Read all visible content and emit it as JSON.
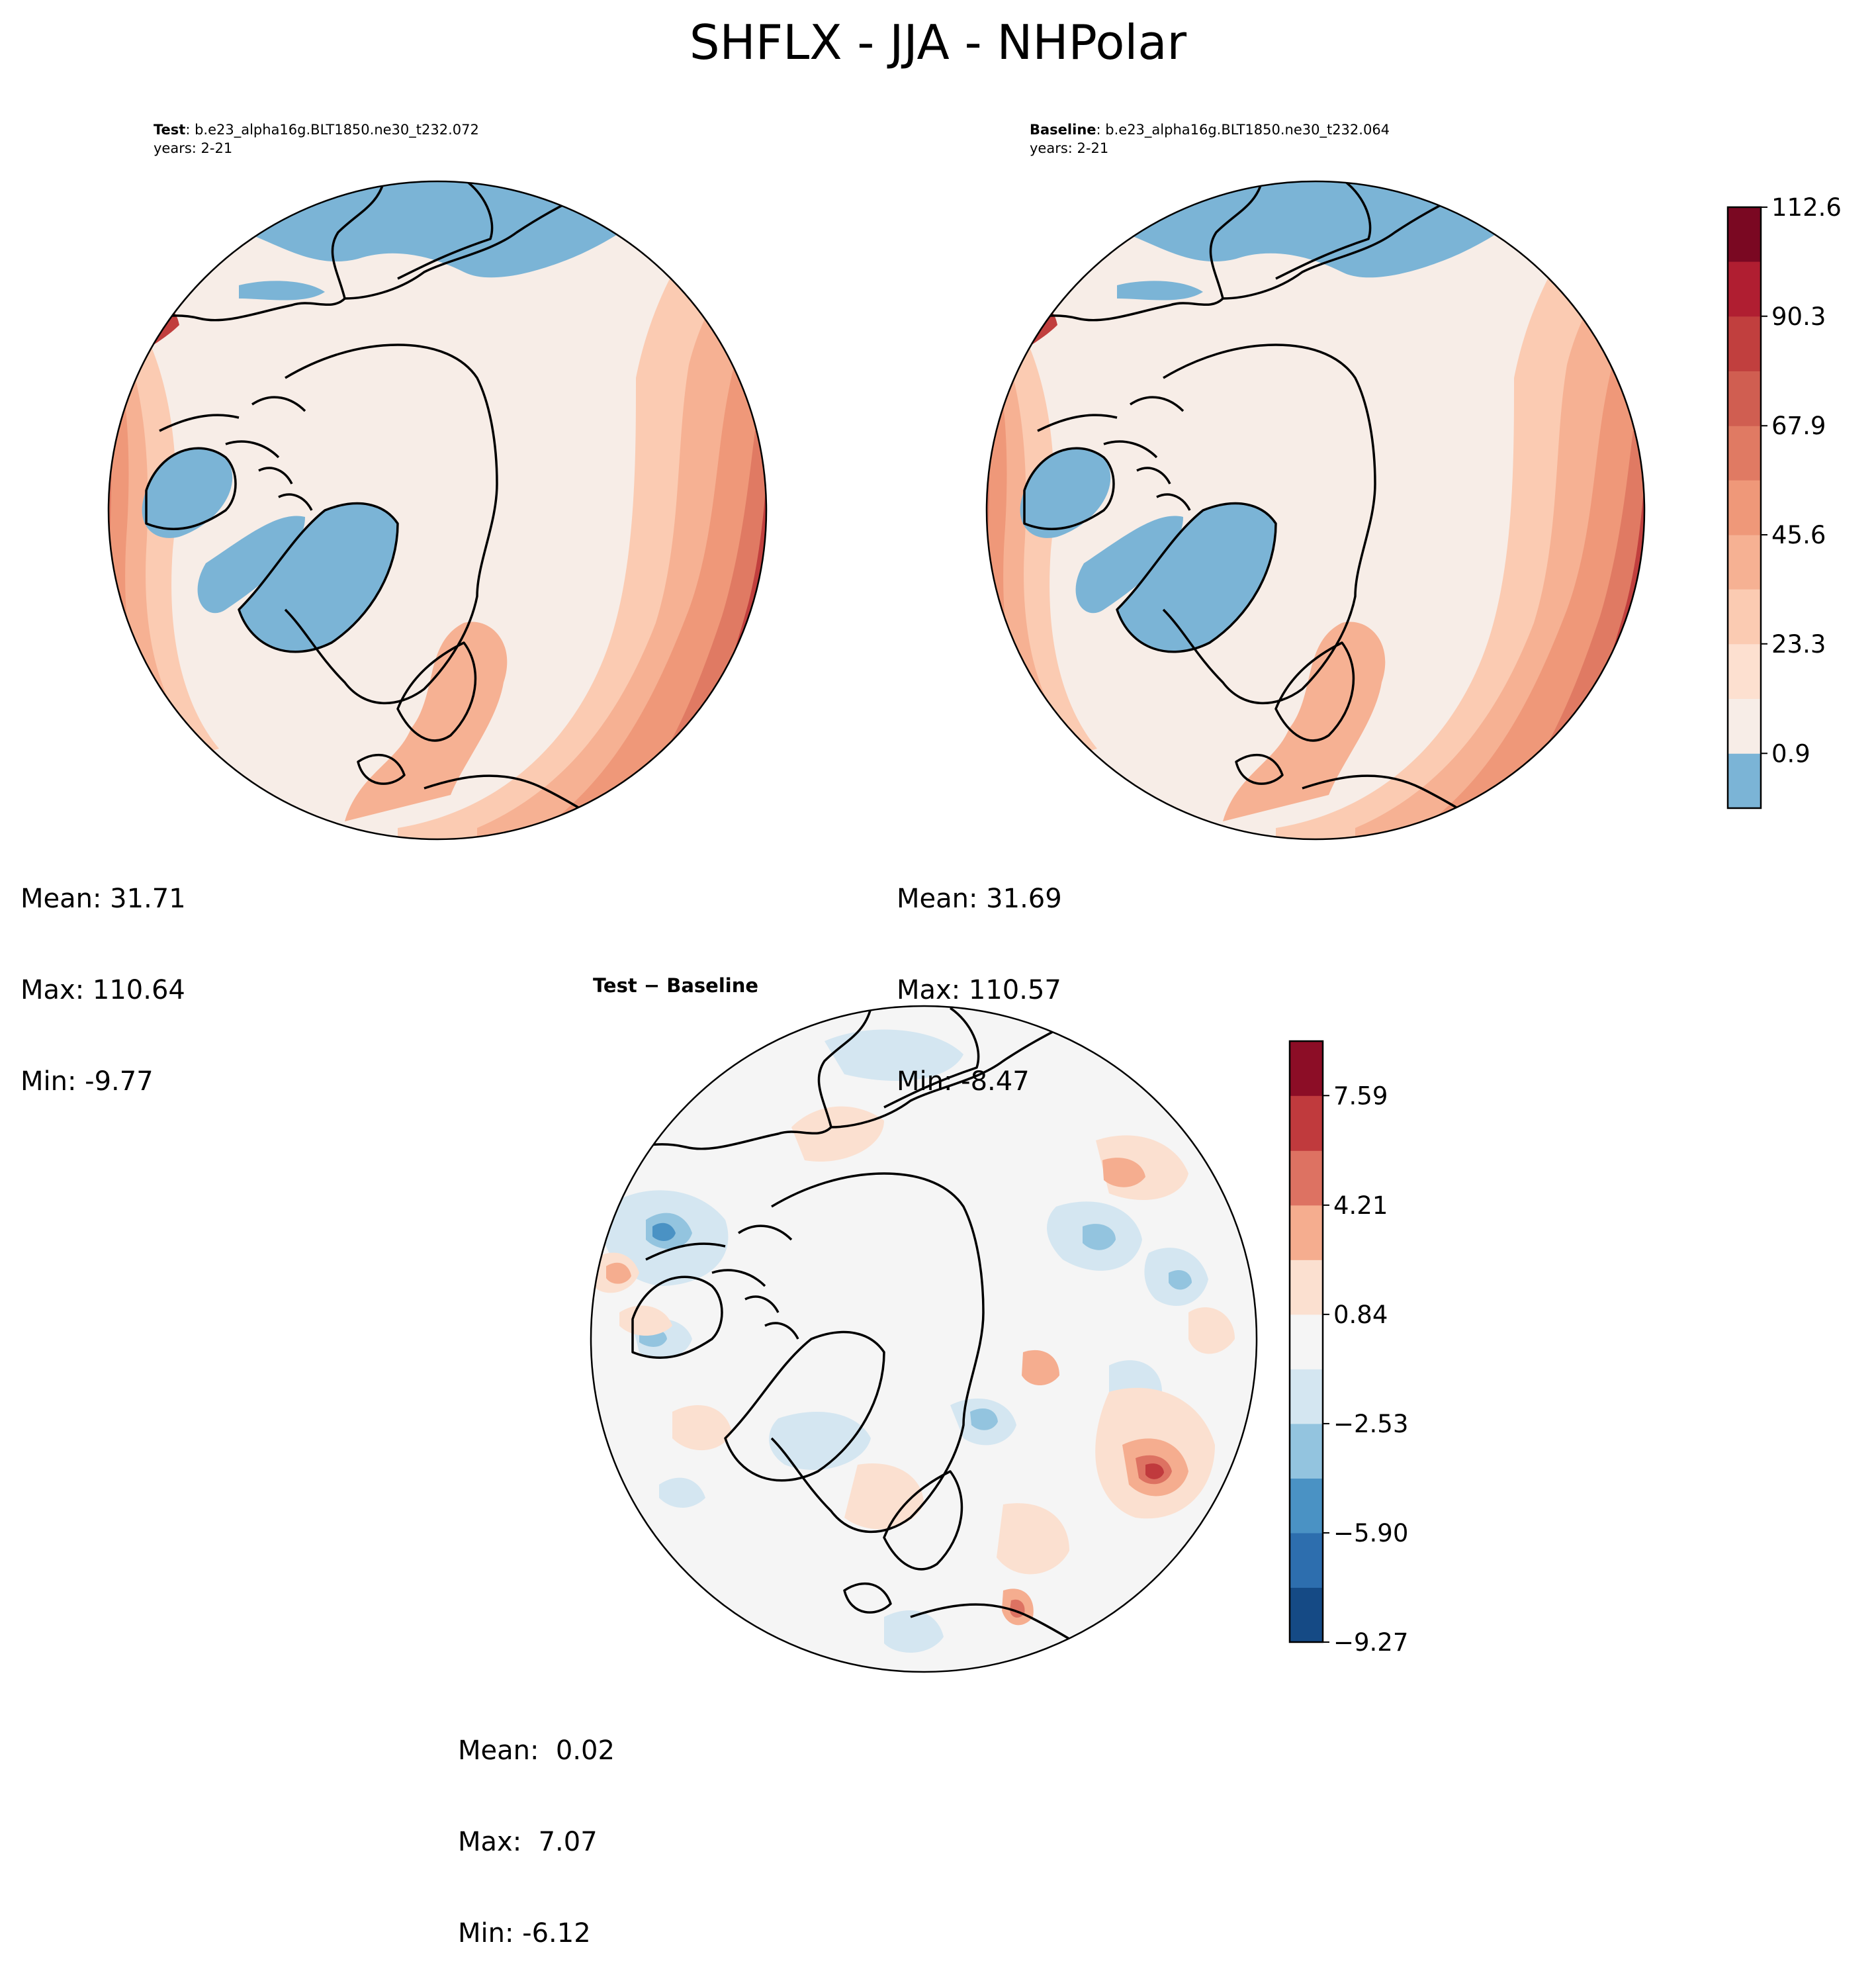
{
  "figure": {
    "title": "SHFLX - JJA - NHPolar"
  },
  "panels": {
    "test": {
      "label": "Test",
      "case": ": b.e23_alpha16g.BLT1850.ne30_t232.072",
      "years": "years: 2-21",
      "mean": "Mean: 31.71",
      "max": "Max: 110.64",
      "min": "Min: -9.77"
    },
    "baseline": {
      "label": "Baseline",
      "case": ": b.e23_alpha16g.BLT1850.ne30_t232.064",
      "years": "years: 2-21",
      "mean": "Mean: 31.69",
      "max": "Max: 110.57",
      "min": "Min: -8.47"
    },
    "diff": {
      "title": "Test − Baseline",
      "mean": "Mean:  0.02",
      "max": "Max:  7.07",
      "min": "Min: -6.12"
    }
  },
  "chart_data": [
    {
      "type": "heatmap",
      "projection": "north-polar-stereographic",
      "panel": "test",
      "variable": "SHFLX",
      "season": "JJA",
      "colormap": "RdBu_r",
      "level_range": [
        0.9,
        112.6
      ],
      "stats": {
        "mean": 31.71,
        "max": 110.64,
        "min": -9.77
      }
    },
    {
      "type": "heatmap",
      "projection": "north-polar-stereographic",
      "panel": "baseline",
      "variable": "SHFLX",
      "season": "JJA",
      "colormap": "RdBu_r",
      "level_range": [
        0.9,
        112.6
      ],
      "stats": {
        "mean": 31.69,
        "max": 110.57,
        "min": -8.47
      }
    },
    {
      "type": "heatmap",
      "projection": "north-polar-stereographic",
      "panel": "diff",
      "variable": "SHFLX difference",
      "season": "JJA",
      "colormap": "RdBu_r",
      "level_range": [
        -9.27,
        9.27
      ],
      "stats": {
        "mean": 0.02,
        "max": 7.07,
        "min": -6.12
      }
    }
  ],
  "colorbars": {
    "main": {
      "ticks": [
        "112.6",
        "90.3",
        "67.9",
        "45.6",
        "23.3",
        "0.9"
      ],
      "tick_values": [
        112.6,
        90.3,
        67.9,
        45.6,
        23.3,
        0.9
      ],
      "range": [
        -10.3,
        112.6
      ],
      "bins": [
        {
          "from": -10.3,
          "to": 0.9,
          "color": "#7bb4d6"
        },
        {
          "from": 0.9,
          "to": 12.1,
          "color": "#f7ede7"
        },
        {
          "from": 12.1,
          "to": 23.3,
          "color": "#fde0d0"
        },
        {
          "from": 23.3,
          "to": 34.5,
          "color": "#fbcbb2"
        },
        {
          "from": 34.5,
          "to": 45.6,
          "color": "#f6b193"
        },
        {
          "from": 45.6,
          "to": 56.8,
          "color": "#ef9879"
        },
        {
          "from": 56.8,
          "to": 67.9,
          "color": "#e07a63"
        },
        {
          "from": 67.9,
          "to": 79.1,
          "color": "#d05e51"
        },
        {
          "from": 79.1,
          "to": 90.3,
          "color": "#c13f3e"
        },
        {
          "from": 90.3,
          "to": 101.5,
          "color": "#b01e31"
        },
        {
          "from": 101.5,
          "to": 112.6,
          "color": "#7a0822"
        }
      ]
    },
    "diff": {
      "ticks": [
        "7.59",
        "4.21",
        "0.84",
        "−2.53",
        "−5.90",
        "−9.27"
      ],
      "tick_values": [
        7.59,
        4.21,
        0.84,
        -2.53,
        -5.9,
        -9.27
      ],
      "range": [
        -9.27,
        9.27
      ],
      "bins": [
        {
          "from": -9.27,
          "to": -7.585,
          "color": "#154a85"
        },
        {
          "from": -7.585,
          "to": -5.9,
          "color": "#2d6eae"
        },
        {
          "from": -5.9,
          "to": -4.215,
          "color": "#4a92c4"
        },
        {
          "from": -4.215,
          "to": -2.53,
          "color": "#93c4df"
        },
        {
          "from": -2.53,
          "to": -0.845,
          "color": "#d4e6f1"
        },
        {
          "from": -0.845,
          "to": 0.84,
          "color": "#f5f5f5"
        },
        {
          "from": 0.84,
          "to": 2.525,
          "color": "#fbe0d0"
        },
        {
          "from": 2.525,
          "to": 4.21,
          "color": "#f5ad8f"
        },
        {
          "from": 4.21,
          "to": 5.895,
          "color": "#dd7262"
        },
        {
          "from": 5.895,
          "to": 7.59,
          "color": "#c03a3d"
        },
        {
          "from": 7.59,
          "to": 9.27,
          "color": "#8c0d26"
        }
      ]
    }
  }
}
